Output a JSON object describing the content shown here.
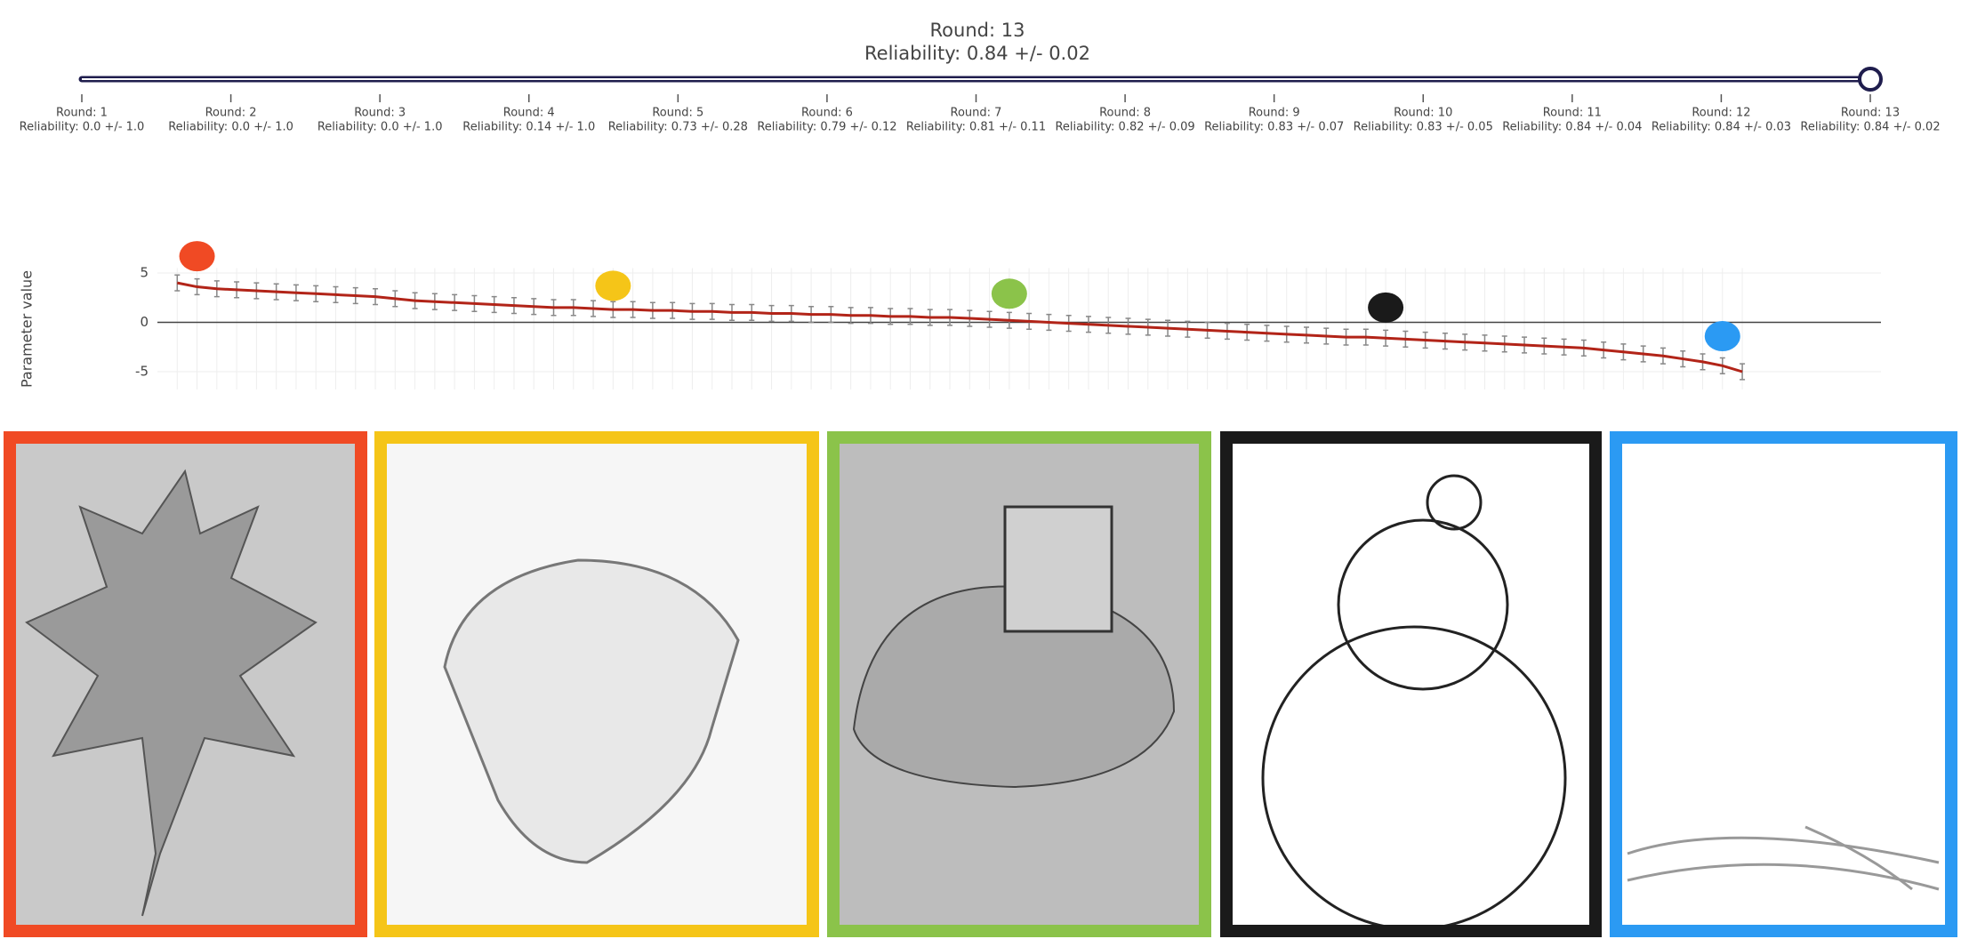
{
  "header": {
    "title": "Round: 13",
    "subtitle": "Reliability: 0.84 +/- 0.02"
  },
  "slider": {
    "steps": [
      {
        "round": "Round: 1",
        "reliability": "Reliability: 0.0 +/- 1.0"
      },
      {
        "round": "Round: 2",
        "reliability": "Reliability: 0.0 +/- 1.0"
      },
      {
        "round": "Round: 3",
        "reliability": "Reliability: 0.0 +/- 1.0"
      },
      {
        "round": "Round: 4",
        "reliability": "Reliability: 0.14 +/- 1.0"
      },
      {
        "round": "Round: 5",
        "reliability": "Reliability: 0.73 +/- 0.28"
      },
      {
        "round": "Round: 6",
        "reliability": "Reliability: 0.79 +/- 0.12"
      },
      {
        "round": "Round: 7",
        "reliability": "Reliability: 0.81 +/- 0.11"
      },
      {
        "round": "Round: 8",
        "reliability": "Reliability: 0.82 +/- 0.09"
      },
      {
        "round": "Round: 9",
        "reliability": "Reliability: 0.83 +/- 0.07"
      },
      {
        "round": "Round: 10",
        "reliability": "Reliability: 0.83 +/- 0.05"
      },
      {
        "round": "Round: 11",
        "reliability": "Reliability: 0.84 +/- 0.04"
      },
      {
        "round": "Round: 12",
        "reliability": "Reliability: 0.84 +/- 0.03"
      },
      {
        "round": "Round: 13",
        "reliability": "Reliability: 0.84 +/- 0.02"
      }
    ]
  },
  "chart_data": {
    "type": "line",
    "y_label": "Parameter value",
    "color": "#b22418",
    "error_color": "#888888",
    "values": [
      4.0,
      3.6,
      3.4,
      3.3,
      3.2,
      3.1,
      3.0,
      2.9,
      2.8,
      2.7,
      2.6,
      2.4,
      2.2,
      2.1,
      2.0,
      1.9,
      1.8,
      1.7,
      1.6,
      1.5,
      1.5,
      1.4,
      1.3,
      1.3,
      1.2,
      1.2,
      1.1,
      1.1,
      1.0,
      1.0,
      0.9,
      0.9,
      0.8,
      0.8,
      0.7,
      0.7,
      0.6,
      0.6,
      0.5,
      0.5,
      0.4,
      0.3,
      0.2,
      0.1,
      0.0,
      -0.1,
      -0.2,
      -0.3,
      -0.4,
      -0.5,
      -0.6,
      -0.7,
      -0.8,
      -0.9,
      -1.0,
      -1.1,
      -1.2,
      -1.3,
      -1.4,
      -1.5,
      -1.5,
      -1.6,
      -1.7,
      -1.8,
      -1.9,
      -2.0,
      -2.1,
      -2.2,
      -2.3,
      -2.4,
      -2.5,
      -2.6,
      -2.8,
      -3.0,
      -3.2,
      -3.4,
      -3.7,
      -4.0,
      -4.4,
      -5.0
    ],
    "error": 0.8,
    "highlights": [
      {
        "x": 1,
        "y": 6.7,
        "color": "#f04a24"
      },
      {
        "x": 22,
        "y": 3.7,
        "color": "#f5c518"
      },
      {
        "x": 42,
        "y": 2.9,
        "color": "#8bc34a"
      },
      {
        "x": 61,
        "y": 1.5,
        "color": "#1a1a1a"
      },
      {
        "x": 78,
        "y": -1.4,
        "color": "#2b9af3"
      }
    ],
    "xlim": [
      -1,
      86
    ],
    "ylim": [
      -6.8,
      5.5
    ],
    "yticks": [
      -5,
      0,
      5
    ],
    "grid": true
  }
}
